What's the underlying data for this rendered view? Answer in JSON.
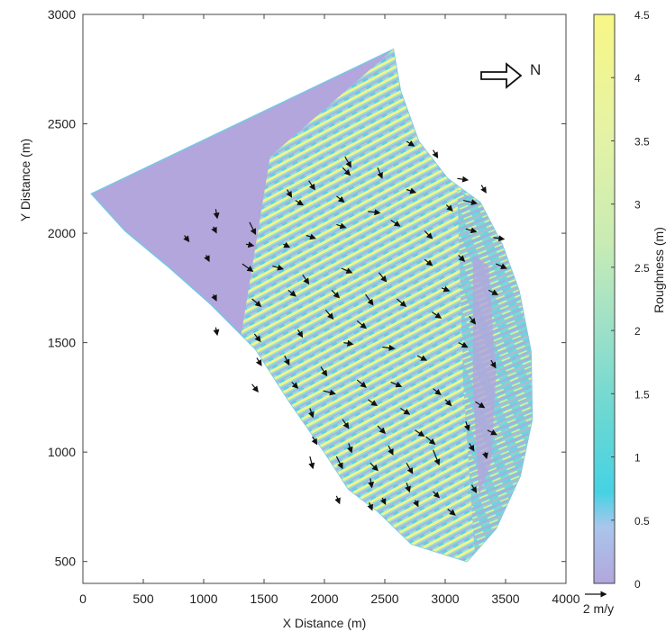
{
  "chart_data": {
    "type": "heatmap",
    "xlabel": "X Distance (m)",
    "ylabel": "Y Distance (m)",
    "xlim": [
      0,
      4000
    ],
    "ylim": [
      400,
      3000
    ],
    "xticks": [
      0,
      500,
      1000,
      1500,
      2000,
      2500,
      3000,
      3500,
      4000
    ],
    "yticks": [
      500,
      1000,
      1500,
      2000,
      2500,
      3000
    ],
    "grid": false,
    "colorbar": {
      "label": "Roughness (m)",
      "range": [
        0,
        4.5
      ],
      "ticks": [
        "0",
        "0.5",
        "1",
        "1.5",
        "2",
        "2.5",
        "3",
        "3.5",
        "4",
        "4.5"
      ],
      "colors": [
        "#b3a6dc",
        "#a9c6ec",
        "#46d2e4",
        "#6cd8d2",
        "#9ee0c8",
        "#c8ecb4",
        "#e6f3a4",
        "#f8f785"
      ]
    },
    "north_label": "N",
    "north_direction": "right",
    "velocity_scale": {
      "label": "2 m/y",
      "magnitude": 2
    },
    "region_outline": [
      [
        70,
        2180
      ],
      [
        2570,
        2840
      ],
      [
        2630,
        2650
      ],
      [
        2780,
        2420
      ],
      [
        3020,
        2250
      ],
      [
        3290,
        2140
      ],
      [
        3470,
        1950
      ],
      [
        3610,
        1740
      ],
      [
        3710,
        1460
      ],
      [
        3720,
        1150
      ],
      [
        3620,
        890
      ],
      [
        3420,
        650
      ],
      [
        3180,
        500
      ],
      [
        2720,
        580
      ],
      [
        2440,
        730
      ],
      [
        2200,
        830
      ],
      [
        2000,
        1000
      ],
      [
        1710,
        1230
      ],
      [
        1430,
        1470
      ],
      [
        1050,
        1680
      ],
      [
        700,
        1850
      ],
      [
        350,
        2010
      ],
      [
        70,
        2180
      ]
    ],
    "velocity_vectors": [
      [
        1100,
        2110,
        0.1,
        -0.6
      ],
      [
        1380,
        2050,
        0.4,
        -0.8
      ],
      [
        1760,
        2150,
        0.5,
        -0.3
      ],
      [
        1870,
        2240,
        0.4,
        -0.6
      ],
      [
        2150,
        2300,
        0.5,
        -0.5
      ],
      [
        2170,
        2350,
        0.4,
        -0.7
      ],
      [
        2440,
        2300,
        0.3,
        -0.7
      ],
      [
        2680,
        2420,
        0.5,
        -0.3
      ],
      [
        2900,
        2380,
        0.3,
        -0.5
      ],
      [
        3100,
        2250,
        0.7,
        -0.1
      ],
      [
        3150,
        2150,
        0.9,
        -0.2
      ],
      [
        3300,
        2220,
        0.3,
        -0.5
      ],
      [
        2100,
        2170,
        0.5,
        -0.4
      ],
      [
        2360,
        2100,
        0.8,
        -0.1
      ],
      [
        2680,
        2200,
        0.6,
        -0.2
      ],
      [
        3010,
        2130,
        0.4,
        -0.4
      ],
      [
        1690,
        2200,
        0.3,
        -0.5
      ],
      [
        1850,
        1990,
        0.6,
        -0.2
      ],
      [
        2100,
        2040,
        0.6,
        -0.2
      ],
      [
        2550,
        2060,
        0.6,
        -0.4
      ],
      [
        2830,
        2010,
        0.5,
        -0.5
      ],
      [
        3170,
        2020,
        0.7,
        -0.2
      ],
      [
        3400,
        1980,
        0.7,
        -0.1
      ],
      [
        1080,
        2030,
        0.2,
        -0.4
      ],
      [
        1350,
        1950,
        0.5,
        -0.1
      ],
      [
        1660,
        1950,
        0.4,
        -0.2
      ],
      [
        2140,
        1840,
        0.7,
        -0.3
      ],
      [
        2450,
        1820,
        0.5,
        -0.6
      ],
      [
        2830,
        1880,
        0.5,
        -0.4
      ],
      [
        3110,
        1900,
        0.4,
        -0.4
      ],
      [
        3420,
        1860,
        0.7,
        -0.3
      ],
      [
        840,
        1990,
        0.3,
        -0.4
      ],
      [
        1020,
        1900,
        0.2,
        -0.4
      ],
      [
        1320,
        1860,
        0.7,
        -0.5
      ],
      [
        1570,
        1850,
        0.7,
        -0.2
      ],
      [
        1820,
        1810,
        0.4,
        -0.6
      ],
      [
        2060,
        1740,
        0.5,
        -0.5
      ],
      [
        2340,
        1720,
        0.5,
        -0.7
      ],
      [
        2600,
        1700,
        0.6,
        -0.5
      ],
      [
        2970,
        1750,
        0.5,
        -0.2
      ],
      [
        3360,
        1740,
        0.6,
        -0.3
      ],
      [
        1080,
        1720,
        0.2,
        -0.4
      ],
      [
        1400,
        1700,
        0.6,
        -0.5
      ],
      [
        1700,
        1740,
        0.5,
        -0.4
      ],
      [
        2010,
        1650,
        0.5,
        -0.6
      ],
      [
        2270,
        1600,
        0.6,
        -0.5
      ],
      [
        2890,
        1640,
        0.6,
        -0.4
      ],
      [
        3200,
        1620,
        0.4,
        -0.5
      ],
      [
        1100,
        1570,
        0.1,
        -0.5
      ],
      [
        1420,
        1540,
        0.4,
        -0.5
      ],
      [
        1780,
        1560,
        0.3,
        -0.5
      ],
      [
        2160,
        1500,
        0.6,
        -0.1
      ],
      [
        2480,
        1480,
        0.8,
        -0.1
      ],
      [
        2770,
        1440,
        0.6,
        -0.3
      ],
      [
        3110,
        1500,
        0.6,
        -0.3
      ],
      [
        3380,
        1420,
        0.3,
        -0.5
      ],
      [
        1440,
        1430,
        0.3,
        -0.5
      ],
      [
        1670,
        1440,
        0.3,
        -0.6
      ],
      [
        1970,
        1390,
        0.4,
        -0.6
      ],
      [
        2270,
        1330,
        0.6,
        -0.5
      ],
      [
        2550,
        1320,
        0.7,
        -0.3
      ],
      [
        2900,
        1290,
        0.5,
        -0.4
      ],
      [
        1400,
        1310,
        0.4,
        -0.5
      ],
      [
        1730,
        1320,
        0.4,
        -0.4
      ],
      [
        1990,
        1280,
        0.8,
        -0.2
      ],
      [
        2360,
        1240,
        0.6,
        -0.4
      ],
      [
        2630,
        1200,
        0.6,
        -0.4
      ],
      [
        3000,
        1240,
        0.4,
        -0.4
      ],
      [
        3250,
        1230,
        0.6,
        -0.4
      ],
      [
        1880,
        1200,
        0.2,
        -0.6
      ],
      [
        2150,
        1150,
        0.4,
        -0.6
      ],
      [
        2440,
        1120,
        0.5,
        -0.5
      ],
      [
        2750,
        1100,
        0.6,
        -0.4
      ],
      [
        3170,
        1140,
        0.2,
        -0.6
      ],
      [
        3350,
        1100,
        0.6,
        -0.3
      ],
      [
        1900,
        1070,
        0.3,
        -0.5
      ],
      [
        2200,
        1040,
        0.2,
        -0.6
      ],
      [
        2530,
        1030,
        0.3,
        -0.6
      ],
      [
        2840,
        1070,
        0.6,
        -0.5
      ],
      [
        3200,
        1040,
        0.3,
        -0.5
      ],
      [
        1880,
        980,
        0.2,
        -0.8
      ],
      [
        2100,
        980,
        0.4,
        -0.8
      ],
      [
        2380,
        950,
        0.5,
        -0.5
      ],
      [
        2680,
        950,
        0.4,
        -0.7
      ],
      [
        2900,
        1010,
        0.4,
        -1.0
      ],
      [
        3330,
        1000,
        0.1,
        -0.4
      ],
      [
        2380,
        880,
        0.1,
        -0.6
      ],
      [
        2680,
        860,
        0.2,
        -0.6
      ],
      [
        2900,
        820,
        0.4,
        -0.4
      ],
      [
        3220,
        850,
        0.3,
        -0.5
      ],
      [
        2480,
        790,
        0.2,
        -0.4
      ],
      [
        2750,
        780,
        0.2,
        -0.4
      ],
      [
        3020,
        740,
        0.5,
        -0.4
      ],
      [
        2100,
        800,
        0.2,
        -0.5
      ],
      [
        2370,
        770,
        0.2,
        -0.5
      ]
    ]
  }
}
